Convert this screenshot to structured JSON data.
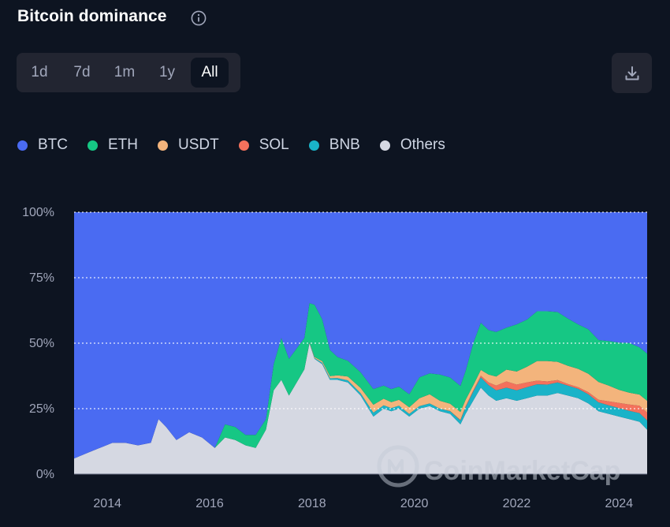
{
  "header": {
    "title": "Bitcoin dominance"
  },
  "range_selector": {
    "options": [
      "1d",
      "7d",
      "1m",
      "1y",
      "All"
    ],
    "active": "All"
  },
  "watermark": "CoinMarketCap",
  "chart_data": {
    "type": "area",
    "stacked": true,
    "title": "Bitcoin dominance",
    "xlabel": "",
    "ylabel": "",
    "ylim": [
      0,
      100
    ],
    "y_ticks": [
      "0%",
      "25%",
      "50%",
      "75%",
      "100%"
    ],
    "y_tick_values": [
      0,
      25,
      50,
      75,
      100
    ],
    "x_ticks": [
      "2014",
      "2016",
      "2018",
      "2020",
      "2022",
      "2024"
    ],
    "x_tick_values": [
      2014,
      2016,
      2018,
      2020,
      2022,
      2024
    ],
    "xlim": [
      2013.35,
      2024.55
    ],
    "grid": true,
    "legend_position": "top-left",
    "x": [
      2013.35,
      2013.6,
      2013.85,
      2014.1,
      2014.35,
      2014.6,
      2014.85,
      2015.0,
      2015.15,
      2015.35,
      2015.6,
      2015.85,
      2016.1,
      2016.3,
      2016.5,
      2016.7,
      2016.9,
      2017.1,
      2017.25,
      2017.4,
      2017.55,
      2017.7,
      2017.85,
      2017.95,
      2018.05,
      2018.2,
      2018.35,
      2018.5,
      2018.7,
      2018.95,
      2019.2,
      2019.4,
      2019.55,
      2019.7,
      2019.9,
      2020.1,
      2020.3,
      2020.5,
      2020.7,
      2020.9,
      2021.0,
      2021.15,
      2021.3,
      2021.45,
      2021.6,
      2021.8,
      2022.0,
      2022.2,
      2022.4,
      2022.6,
      2022.8,
      2023.0,
      2023.2,
      2023.4,
      2023.6,
      2023.8,
      2024.0,
      2024.2,
      2024.4,
      2024.55
    ],
    "series": [
      {
        "name": "Others",
        "color": "#d5d8e2",
        "values": [
          6,
          8,
          10,
          12,
          12,
          11,
          12,
          21,
          18,
          13,
          16,
          14,
          10,
          14,
          13,
          11,
          10,
          17,
          32,
          36,
          30,
          35,
          40,
          50,
          44,
          42,
          36,
          36,
          35,
          30,
          22,
          25,
          24,
          25,
          22,
          25,
          26,
          24,
          23,
          19,
          23,
          28,
          33,
          30,
          28,
          29,
          28,
          29,
          30,
          30,
          31,
          30,
          29,
          27,
          24,
          23,
          22,
          21,
          20,
          17
        ]
      },
      {
        "name": "BNB",
        "color": "#1ab3c8",
        "values": [
          0,
          0,
          0,
          0,
          0,
          0,
          0,
          0,
          0,
          0,
          0,
          0,
          0,
          0,
          0,
          0,
          0,
          0,
          0,
          0,
          0,
          0,
          0,
          0.1,
          0.3,
          0.5,
          0.6,
          0.7,
          0.8,
          0.9,
          1.5,
          1.3,
          1.2,
          1.1,
          1.0,
          1.0,
          1.0,
          1.0,
          1.0,
          1.5,
          2.5,
          3.5,
          4.0,
          4.0,
          4.0,
          4.0,
          4.0,
          4.2,
          4.3,
          4.2,
          4.0,
          3.8,
          3.6,
          3.5,
          3.4,
          3.3,
          3.2,
          3.2,
          3.3,
          3.5
        ]
      },
      {
        "name": "SOL",
        "color": "#f4715c",
        "values": [
          0,
          0,
          0,
          0,
          0,
          0,
          0,
          0,
          0,
          0,
          0,
          0,
          0,
          0,
          0,
          0,
          0,
          0,
          0,
          0,
          0,
          0,
          0,
          0,
          0,
          0,
          0,
          0,
          0,
          0,
          0,
          0,
          0,
          0,
          0,
          0,
          0,
          0,
          0.1,
          0.2,
          0.3,
          0.4,
          0.6,
          1.0,
          1.8,
          2.4,
          2.2,
          1.8,
          1.4,
          1.2,
          0.9,
          0.6,
          0.6,
          0.8,
          1.0,
          1.5,
          2.0,
          2.4,
          2.8,
          3.0
        ]
      },
      {
        "name": "USDT",
        "color": "#f3b47c",
        "values": [
          0,
          0,
          0,
          0,
          0,
          0,
          0,
          0,
          0,
          0,
          0,
          0,
          0,
          0,
          0,
          0,
          0,
          0,
          0,
          0,
          0,
          0,
          0,
          0.2,
          0.4,
          0.6,
          0.8,
          1.0,
          1.5,
          2.0,
          3.0,
          2.5,
          2.3,
          2.3,
          2.5,
          3.0,
          3.5,
          3.0,
          2.8,
          3.0,
          2.5,
          2.0,
          2.2,
          3.0,
          3.5,
          4.5,
          5.0,
          6.0,
          7.5,
          7.8,
          7.0,
          7.0,
          7.0,
          7.0,
          6.8,
          6.0,
          5.0,
          4.5,
          4.3,
          4.5
        ]
      },
      {
        "name": "ETH",
        "color": "#16c784",
        "values": [
          0,
          0,
          0,
          0,
          0,
          0,
          0,
          0,
          0,
          0,
          0,
          0,
          0,
          5,
          5,
          4,
          5,
          4,
          10,
          16,
          14,
          13,
          12,
          15,
          20,
          16,
          10,
          7,
          6,
          6,
          6,
          5,
          5,
          5,
          5,
          8,
          8,
          10,
          10,
          10,
          11,
          16,
          18,
          17,
          17,
          16,
          18,
          18,
          19,
          19,
          19,
          18,
          17,
          17,
          16,
          17,
          18,
          19,
          18,
          18
        ]
      },
      {
        "name": "BTC",
        "color": "#4a6bf2",
        "values": [
          94,
          92,
          90,
          88,
          88,
          89,
          88,
          79,
          82,
          87,
          84,
          86,
          90,
          81,
          82,
          85,
          85,
          79,
          58,
          48,
          56,
          52,
          48,
          34.7,
          35.3,
          40.9,
          52.6,
          55.3,
          56.7,
          61.1,
          67.5,
          66.2,
          67.5,
          66.6,
          69.5,
          63,
          61.5,
          62,
          63.1,
          66.3,
          60.7,
          50.1,
          42.2,
          45,
          45.7,
          44.1,
          42.8,
          41,
          37.8,
          37.8,
          38.1,
          40.6,
          42.8,
          44.7,
          48.8,
          49.2,
          49.8,
          49.9,
          51.6,
          54
        ]
      }
    ]
  }
}
